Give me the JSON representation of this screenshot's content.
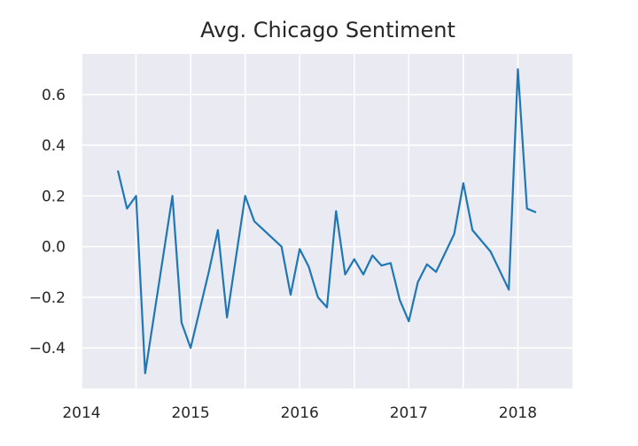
{
  "chart_data": {
    "type": "line",
    "title": "Avg. Chicago Sentiment",
    "xlabel": "",
    "ylabel": "",
    "x_range": [
      "2014-01-01",
      "2018-07-01"
    ],
    "ylim": [
      -0.56,
      0.76
    ],
    "x_ticks": [
      {
        "date": "2014-01-01",
        "label": "2014"
      },
      {
        "date": "2015-01-01",
        "label": "2015"
      },
      {
        "date": "2016-01-01",
        "label": "2016"
      },
      {
        "date": "2017-01-01",
        "label": "2017"
      },
      {
        "date": "2018-01-01",
        "label": "2018"
      }
    ],
    "x_minor_gridlines": [
      "2014-07-01",
      "2015-07-01",
      "2016-07-01",
      "2017-07-01"
    ],
    "y_ticks": [
      {
        "value": -0.4,
        "label": "−0.4"
      },
      {
        "value": -0.2,
        "label": "−0.2"
      },
      {
        "value": 0.0,
        "label": "0.0"
      },
      {
        "value": 0.2,
        "label": "0.2"
      },
      {
        "value": 0.4,
        "label": "0.4"
      },
      {
        "value": 0.6,
        "label": "0.6"
      }
    ],
    "grid": true,
    "background_color": "#eaeaf2",
    "grid_color": "#ffffff",
    "line_color": "#1f77b4",
    "series": [
      {
        "points": [
          {
            "x": "2014-05-01",
            "y": 0.3
          },
          {
            "x": "2014-06-01",
            "y": 0.15
          },
          {
            "x": "2014-07-01",
            "y": 0.2
          },
          {
            "x": "2014-08-01",
            "y": -0.5
          },
          {
            "x": "2014-11-01",
            "y": 0.2
          },
          {
            "x": "2014-12-01",
            "y": -0.3
          },
          {
            "x": "2015-01-01",
            "y": -0.4
          },
          {
            "x": "2015-03-01",
            "y": -0.1
          },
          {
            "x": "2015-04-01",
            "y": 0.065
          },
          {
            "x": "2015-05-01",
            "y": -0.28
          },
          {
            "x": "2015-07-01",
            "y": 0.2
          },
          {
            "x": "2015-08-01",
            "y": 0.1
          },
          {
            "x": "2015-11-01",
            "y": 0.0
          },
          {
            "x": "2015-12-01",
            "y": -0.19
          },
          {
            "x": "2016-01-01",
            "y": -0.01
          },
          {
            "x": "2016-02-01",
            "y": -0.08
          },
          {
            "x": "2016-03-01",
            "y": -0.2
          },
          {
            "x": "2016-04-01",
            "y": -0.24
          },
          {
            "x": "2016-05-01",
            "y": 0.14
          },
          {
            "x": "2016-06-01",
            "y": -0.11
          },
          {
            "x": "2016-07-01",
            "y": -0.05
          },
          {
            "x": "2016-08-01",
            "y": -0.11
          },
          {
            "x": "2016-09-01",
            "y": -0.035
          },
          {
            "x": "2016-10-01",
            "y": -0.075
          },
          {
            "x": "2016-11-01",
            "y": -0.065
          },
          {
            "x": "2016-12-01",
            "y": -0.21
          },
          {
            "x": "2017-01-01",
            "y": -0.295
          },
          {
            "x": "2017-02-01",
            "y": -0.14
          },
          {
            "x": "2017-03-01",
            "y": -0.07
          },
          {
            "x": "2017-04-01",
            "y": -0.1
          },
          {
            "x": "2017-06-01",
            "y": 0.05
          },
          {
            "x": "2017-07-01",
            "y": 0.25
          },
          {
            "x": "2017-08-01",
            "y": 0.065
          },
          {
            "x": "2017-10-01",
            "y": -0.02
          },
          {
            "x": "2017-12-01",
            "y": -0.17
          },
          {
            "x": "2018-01-01",
            "y": 0.7
          },
          {
            "x": "2018-02-01",
            "y": 0.15
          },
          {
            "x": "2018-03-01",
            "y": 0.135
          }
        ]
      }
    ]
  }
}
